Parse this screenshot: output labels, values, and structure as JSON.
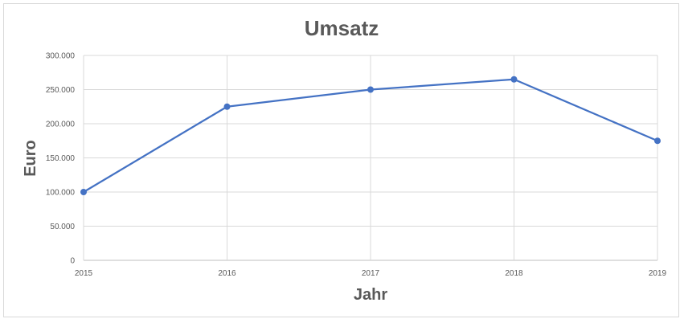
{
  "chart_data": {
    "type": "line",
    "title": "Umsatz",
    "xlabel": "Jahr",
    "ylabel": "Euro",
    "x": [
      "2015",
      "2016",
      "2017",
      "2018",
      "2019"
    ],
    "x_tick_labels": [
      "2015",
      "2016",
      "2017",
      "2018",
      "2019"
    ],
    "series": [
      {
        "values": [
          100000,
          225000,
          250000,
          265000,
          175000
        ],
        "color": "#4472C4"
      }
    ],
    "ylim": [
      0,
      300000
    ],
    "y_ticks": [
      0,
      50000,
      100000,
      150000,
      200000,
      250000,
      300000
    ],
    "y_tick_labels": [
      "0",
      "50.000",
      "100.000",
      "150.000",
      "200.000",
      "250.000",
      "300.000"
    ],
    "grid": true,
    "legend": "none"
  }
}
